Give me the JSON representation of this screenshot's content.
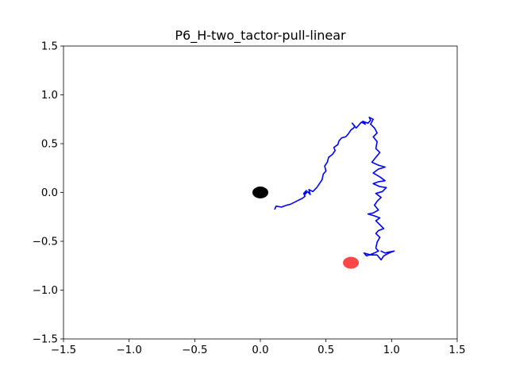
{
  "chart_data": {
    "type": "line",
    "title": "P6_H-two_tactor-pull-linear",
    "xlabel": "",
    "ylabel": "",
    "xlim": [
      -1.5,
      1.5
    ],
    "ylim": [
      -1.5,
      1.5
    ],
    "xticks": [
      -1.5,
      -1.0,
      -0.5,
      0.0,
      0.5,
      1.0,
      1.5
    ],
    "yticks": [
      -1.5,
      -1.0,
      -0.5,
      0.0,
      0.5,
      1.0,
      1.5
    ],
    "xtick_labels": [
      "−1.5",
      "−1.0",
      "−0.5",
      "0.0",
      "0.5",
      "1.0",
      "1.5"
    ],
    "ytick_labels": [
      "−1.5",
      "−1.0",
      "−0.5",
      "0.0",
      "0.5",
      "1.0",
      "1.5"
    ],
    "grid": false,
    "series": [
      {
        "color": "#0000ff",
        "points": [
          [
            0.11,
            -0.17
          ],
          [
            0.12,
            -0.14
          ],
          [
            0.16,
            -0.15
          ],
          [
            0.2,
            -0.13
          ],
          [
            0.23,
            -0.12
          ],
          [
            0.26,
            -0.1
          ],
          [
            0.29,
            -0.08
          ],
          [
            0.32,
            -0.06
          ],
          [
            0.34,
            -0.04
          ],
          [
            0.33,
            -0.01
          ],
          [
            0.35,
            0.02
          ],
          [
            0.34,
            -0.02
          ],
          [
            0.36,
            0.01
          ],
          [
            0.38,
            -0.02
          ],
          [
            0.37,
            0.03
          ],
          [
            0.4,
            0.01
          ],
          [
            0.43,
            0.05
          ],
          [
            0.45,
            0.09
          ],
          [
            0.47,
            0.13
          ],
          [
            0.48,
            0.19
          ],
          [
            0.5,
            0.22
          ],
          [
            0.49,
            0.27
          ],
          [
            0.51,
            0.31
          ],
          [
            0.52,
            0.36
          ],
          [
            0.55,
            0.39
          ],
          [
            0.57,
            0.43
          ],
          [
            0.56,
            0.46
          ],
          [
            0.59,
            0.49
          ],
          [
            0.6,
            0.53
          ],
          [
            0.62,
            0.56
          ],
          [
            0.65,
            0.57
          ],
          [
            0.67,
            0.6
          ],
          [
            0.69,
            0.64
          ],
          [
            0.71,
            0.66
          ],
          [
            0.72,
            0.68
          ],
          [
            0.7,
            0.71
          ],
          [
            0.73,
            0.66
          ],
          [
            0.75,
            0.69
          ],
          [
            0.77,
            0.72
          ],
          [
            0.8,
            0.7
          ],
          [
            0.78,
            0.73
          ],
          [
            0.82,
            0.71
          ],
          [
            0.84,
            0.74
          ],
          [
            0.83,
            0.77
          ],
          [
            0.86,
            0.75
          ],
          [
            0.84,
            0.7
          ],
          [
            0.87,
            0.66
          ],
          [
            0.89,
            0.61
          ],
          [
            0.86,
            0.57
          ],
          [
            0.89,
            0.52
          ],
          [
            0.88,
            0.45
          ],
          [
            0.91,
            0.41
          ],
          [
            0.88,
            0.36
          ],
          [
            0.85,
            0.31
          ],
          [
            0.9,
            0.28
          ],
          [
            0.95,
            0.26
          ],
          [
            0.9,
            0.24
          ],
          [
            0.86,
            0.2
          ],
          [
            0.91,
            0.16
          ],
          [
            0.95,
            0.12
          ],
          [
            0.9,
            0.11
          ],
          [
            0.86,
            0.09
          ],
          [
            0.91,
            0.06
          ],
          [
            0.96,
            0.05
          ],
          [
            0.93,
            0.01
          ],
          [
            0.88,
            -0.01
          ],
          [
            0.92,
            -0.05
          ],
          [
            0.89,
            -0.09
          ],
          [
            0.87,
            -0.13
          ],
          [
            0.9,
            -0.18
          ],
          [
            0.86,
            -0.21
          ],
          [
            0.82,
            -0.22
          ],
          [
            0.87,
            -0.24
          ],
          [
            0.91,
            -0.26
          ],
          [
            0.88,
            -0.29
          ],
          [
            0.91,
            -0.33
          ],
          [
            0.94,
            -0.37
          ],
          [
            0.9,
            -0.39
          ],
          [
            0.88,
            -0.42
          ],
          [
            0.91,
            -0.46
          ],
          [
            0.89,
            -0.51
          ],
          [
            0.88,
            -0.57
          ],
          [
            0.9,
            -0.6
          ],
          [
            0.85,
            -0.63
          ],
          [
            0.81,
            -0.65
          ],
          [
            0.79,
            -0.62
          ],
          [
            0.84,
            -0.64
          ],
          [
            0.89,
            -0.64
          ],
          [
            0.92,
            -0.69
          ],
          [
            0.94,
            -0.65
          ],
          [
            0.98,
            -0.62
          ],
          [
            1.02,
            -0.6
          ],
          [
            0.98,
            -0.61
          ],
          [
            0.95,
            -0.62
          ],
          [
            0.92,
            -0.6
          ]
        ]
      }
    ],
    "markers": [
      {
        "x": 0.0,
        "y": 0.0,
        "color": "#000000",
        "opacity": 1
      },
      {
        "x": 0.69,
        "y": -0.72,
        "color": "#ff0000",
        "opacity": 0.72
      }
    ]
  }
}
